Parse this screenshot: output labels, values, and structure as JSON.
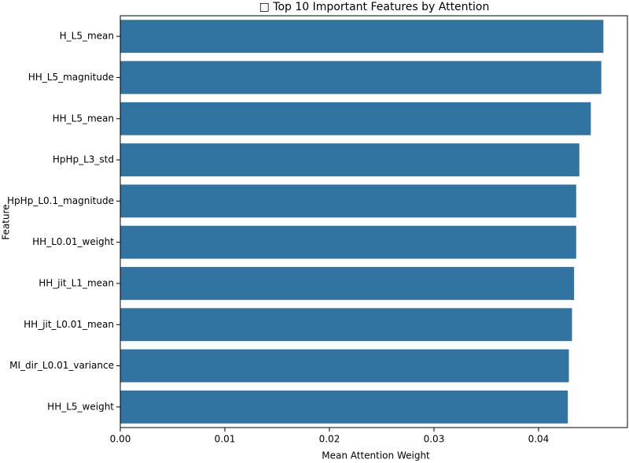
{
  "chart_data": {
    "type": "barh",
    "title": "□ Top 10 Important Features by Attention",
    "x_label": "Mean Attention Weight",
    "y_label": "Feature",
    "categories": [
      "H_L5_mean",
      "HH_L5_magnitude",
      "HH_L5_mean",
      "HpHp_L3_std",
      "HpHp_L0.1_magnitude",
      "HH_L0.01_weight",
      "HH_jit_L1_mean",
      "HH_jit_L0.01_mean",
      "MI_dir_L0.01_variance",
      "HH_L5_weight"
    ],
    "values": [
      0.0462,
      0.046,
      0.045,
      0.0439,
      0.0436,
      0.0436,
      0.0434,
      0.0432,
      0.0429,
      0.0428
    ],
    "color": "#3274a1",
    "xlim": [
      0,
      0.0485
    ],
    "xticks": [
      {
        "value": 0,
        "label": "0.00"
      },
      {
        "value": 0.01,
        "label": "0.01"
      },
      {
        "value": 0.02,
        "label": "0.02"
      },
      {
        "value": 0.03,
        "label": "0.03"
      },
      {
        "value": 0.04,
        "label": "0.04"
      }
    ]
  }
}
